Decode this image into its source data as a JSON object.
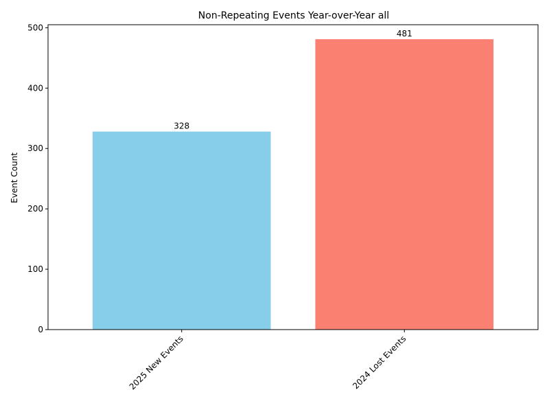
{
  "chart_data": {
    "type": "bar",
    "title": "Non-Repeating Events Year-over-Year all",
    "xlabel": "",
    "ylabel": "Event Count",
    "categories": [
      "2025 New Events",
      "2024 Lost Events"
    ],
    "values": [
      328,
      481
    ],
    "colors": [
      "#87ceeb",
      "#fa8072"
    ],
    "ylim": [
      0,
      505
    ],
    "yticks": [
      0,
      100,
      200,
      300,
      400,
      500
    ],
    "grid": false,
    "legend": "none"
  }
}
